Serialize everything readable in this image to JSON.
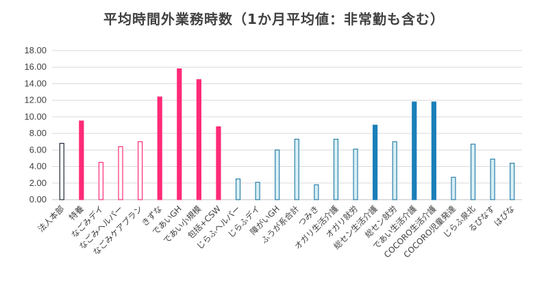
{
  "chart_data": {
    "type": "bar",
    "title": "平均時間外業務時数（1か月平均値：非常勤も含む）",
    "xlabel": "",
    "ylabel": "",
    "ylim": [
      0,
      18
    ],
    "yticks": [
      "0.00",
      "2.00",
      "4.00",
      "6.00",
      "8.00",
      "10.00",
      "12.00",
      "14.00",
      "16.00",
      "18.00"
    ],
    "grid": true,
    "categories": [
      "法人本部",
      "特養",
      "なごみデイ",
      "なごみヘルパー",
      "なごみケアプラン",
      "きずな",
      "であいGH",
      "であい小規模",
      "包括+CSW",
      "じらふヘルパー",
      "じらふデイ",
      "障がいGH",
      "ふうが系合計",
      "つみき",
      "オガリ生活介護",
      "オガリ就労",
      "総セン生活介護",
      "総セン就労",
      "であい生活介護",
      "COCORO生活介護",
      "COCORO児童発達",
      "じらふ泉北",
      "るぴなす",
      "はぴな"
    ],
    "values": [
      6.8,
      9.5,
      4.5,
      6.4,
      7.0,
      12.4,
      15.8,
      14.5,
      8.8,
      2.5,
      2.1,
      6.0,
      7.3,
      1.8,
      7.3,
      6.1,
      9.0,
      7.0,
      11.8,
      11.8,
      2.7,
      6.7,
      4.9,
      4.4
    ],
    "bar_colors": [
      {
        "fill": "#ffffff",
        "stroke": "#1f2a3a"
      },
      {
        "fill": "#ff2a78",
        "stroke": "#ff2a78"
      },
      {
        "fill": "#ffffff",
        "stroke": "#ff2a78"
      },
      {
        "fill": "#ffffff",
        "stroke": "#ff2a78"
      },
      {
        "fill": "#ffffff",
        "stroke": "#ff2a78"
      },
      {
        "fill": "#ff2a78",
        "stroke": "#ff2a78"
      },
      {
        "fill": "#ff2a78",
        "stroke": "#ff2a78"
      },
      {
        "fill": "#ff2a78",
        "stroke": "#ff2a78"
      },
      {
        "fill": "#ff2a78",
        "stroke": "#ff2a78"
      },
      {
        "fill": "#d6eef5",
        "stroke": "#2b7fa8"
      },
      {
        "fill": "#d6eef5",
        "stroke": "#2b7fa8"
      },
      {
        "fill": "#d6eef5",
        "stroke": "#2b7fa8"
      },
      {
        "fill": "#d6eef5",
        "stroke": "#2b7fa8"
      },
      {
        "fill": "#d6eef5",
        "stroke": "#2b7fa8"
      },
      {
        "fill": "#d6eef5",
        "stroke": "#2b7fa8"
      },
      {
        "fill": "#d6eef5",
        "stroke": "#2b7fa8"
      },
      {
        "fill": "#1b7fb8",
        "stroke": "#1b7fb8"
      },
      {
        "fill": "#d6eef5",
        "stroke": "#2b7fa8"
      },
      {
        "fill": "#1b7fb8",
        "stroke": "#1b7fb8"
      },
      {
        "fill": "#1b7fb8",
        "stroke": "#1b7fb8"
      },
      {
        "fill": "#d6eef5",
        "stroke": "#2b7fa8"
      },
      {
        "fill": "#d6eef5",
        "stroke": "#2b7fa8"
      },
      {
        "fill": "#d6eef5",
        "stroke": "#2b7fa8"
      },
      {
        "fill": "#d6eef5",
        "stroke": "#2b7fa8"
      }
    ],
    "grid_color": "#d9d9d9",
    "axis_color": "#bfbfbf"
  }
}
